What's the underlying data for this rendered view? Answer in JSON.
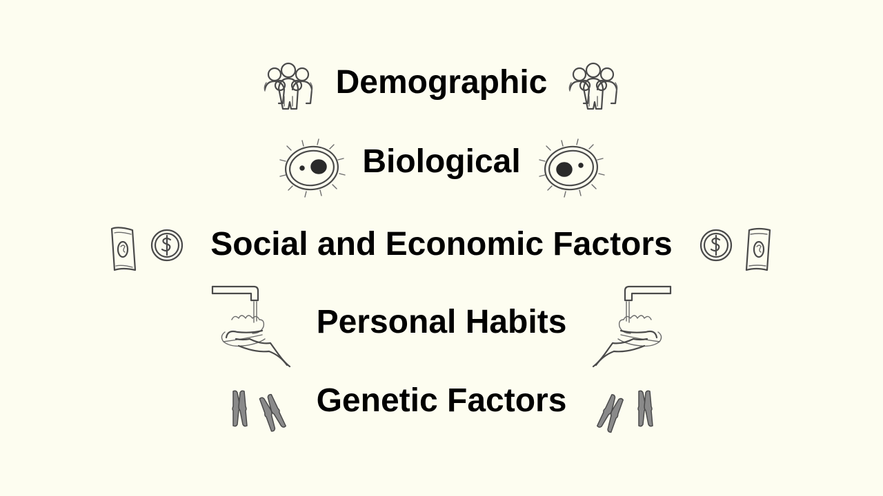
{
  "slide": {
    "background": "#fdfdf0",
    "items": [
      {
        "label": "Demographic",
        "icon": "people-group-icon"
      },
      {
        "label": "Biological",
        "icon": "cell-microbe-icon"
      },
      {
        "label": "Social and Economic Factors",
        "icons": [
          "dollar-bill-icon",
          "dollar-coin-icon"
        ]
      },
      {
        "label": "Personal Habits",
        "icon": "hand-washing-icon"
      },
      {
        "label": "Genetic Factors",
        "icon": "chromosome-icon"
      }
    ]
  }
}
